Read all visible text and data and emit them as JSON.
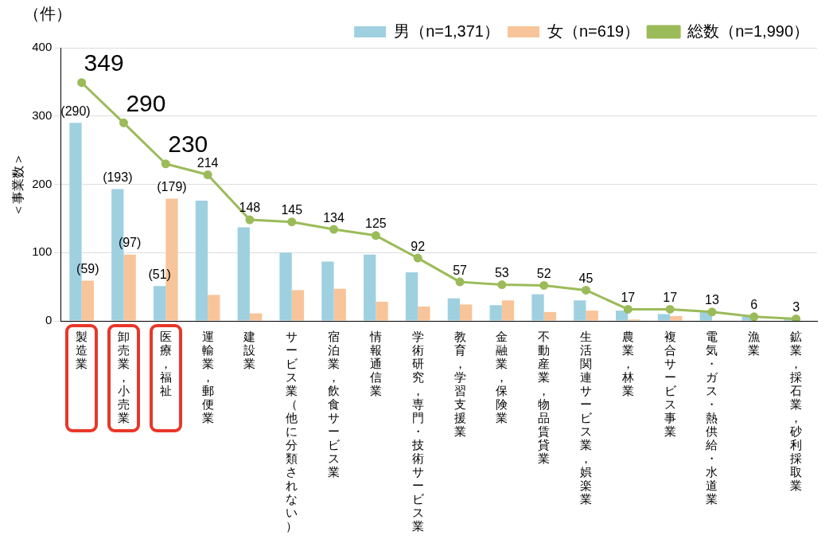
{
  "chart_data": {
    "type": "bar",
    "categories": [
      "製造業",
      "卸売業，小売業",
      "医療，福祉",
      "運輸業，郵便業",
      "建設業",
      "サービス業（他に分類されない）",
      "宿泊業，飲食サービス業",
      "情報通信業",
      "学術研究，専門・技術サービス業",
      "教育，学習支援業",
      "金融業，保険業",
      "不動産業，物品賃貸業",
      "生活関連サービス業，娯楽業",
      "農業，林業",
      "複合サービス事業",
      "電気・ガス・熱供給・水道業",
      "漁業",
      "鉱業，採石業，砂利採取業"
    ],
    "series": [
      {
        "name": "男（n=1,371）",
        "color": "#9fd0e0",
        "values": [
          290,
          193,
          51,
          176,
          137,
          100,
          87,
          97,
          71,
          33,
          23,
          39,
          30,
          15,
          10,
          13,
          6,
          3
        ],
        "value_labels": [
          "(290)",
          "(193)",
          "(51)",
          null,
          null,
          null,
          null,
          null,
          null,
          null,
          null,
          null,
          null,
          null,
          null,
          null,
          null,
          null
        ]
      },
      {
        "name": "女（n=619）",
        "color": "#f8c499",
        "values": [
          59,
          97,
          179,
          38,
          11,
          45,
          47,
          28,
          21,
          24,
          30,
          13,
          15,
          2,
          7,
          0,
          0,
          0
        ],
        "value_labels": [
          "(59)",
          "(97)",
          "(179)",
          null,
          null,
          null,
          null,
          null,
          null,
          null,
          null,
          null,
          null,
          null,
          null,
          null,
          null,
          null
        ]
      },
      {
        "name": "総数（n=1,990）",
        "type": "line",
        "color": "#9bbb59",
        "values": [
          349,
          290,
          230,
          214,
          148,
          145,
          134,
          125,
          92,
          57,
          53,
          52,
          45,
          17,
          17,
          13,
          6,
          3
        ],
        "data_labels": true,
        "marker": "circle"
      }
    ],
    "ylabel": "＜事業数＞",
    "annotations": [
      "（件）"
    ],
    "ylim": [
      0,
      400
    ],
    "yticks": [
      0,
      100,
      200,
      300,
      400
    ],
    "grid": "y",
    "legend": "top right"
  }
}
